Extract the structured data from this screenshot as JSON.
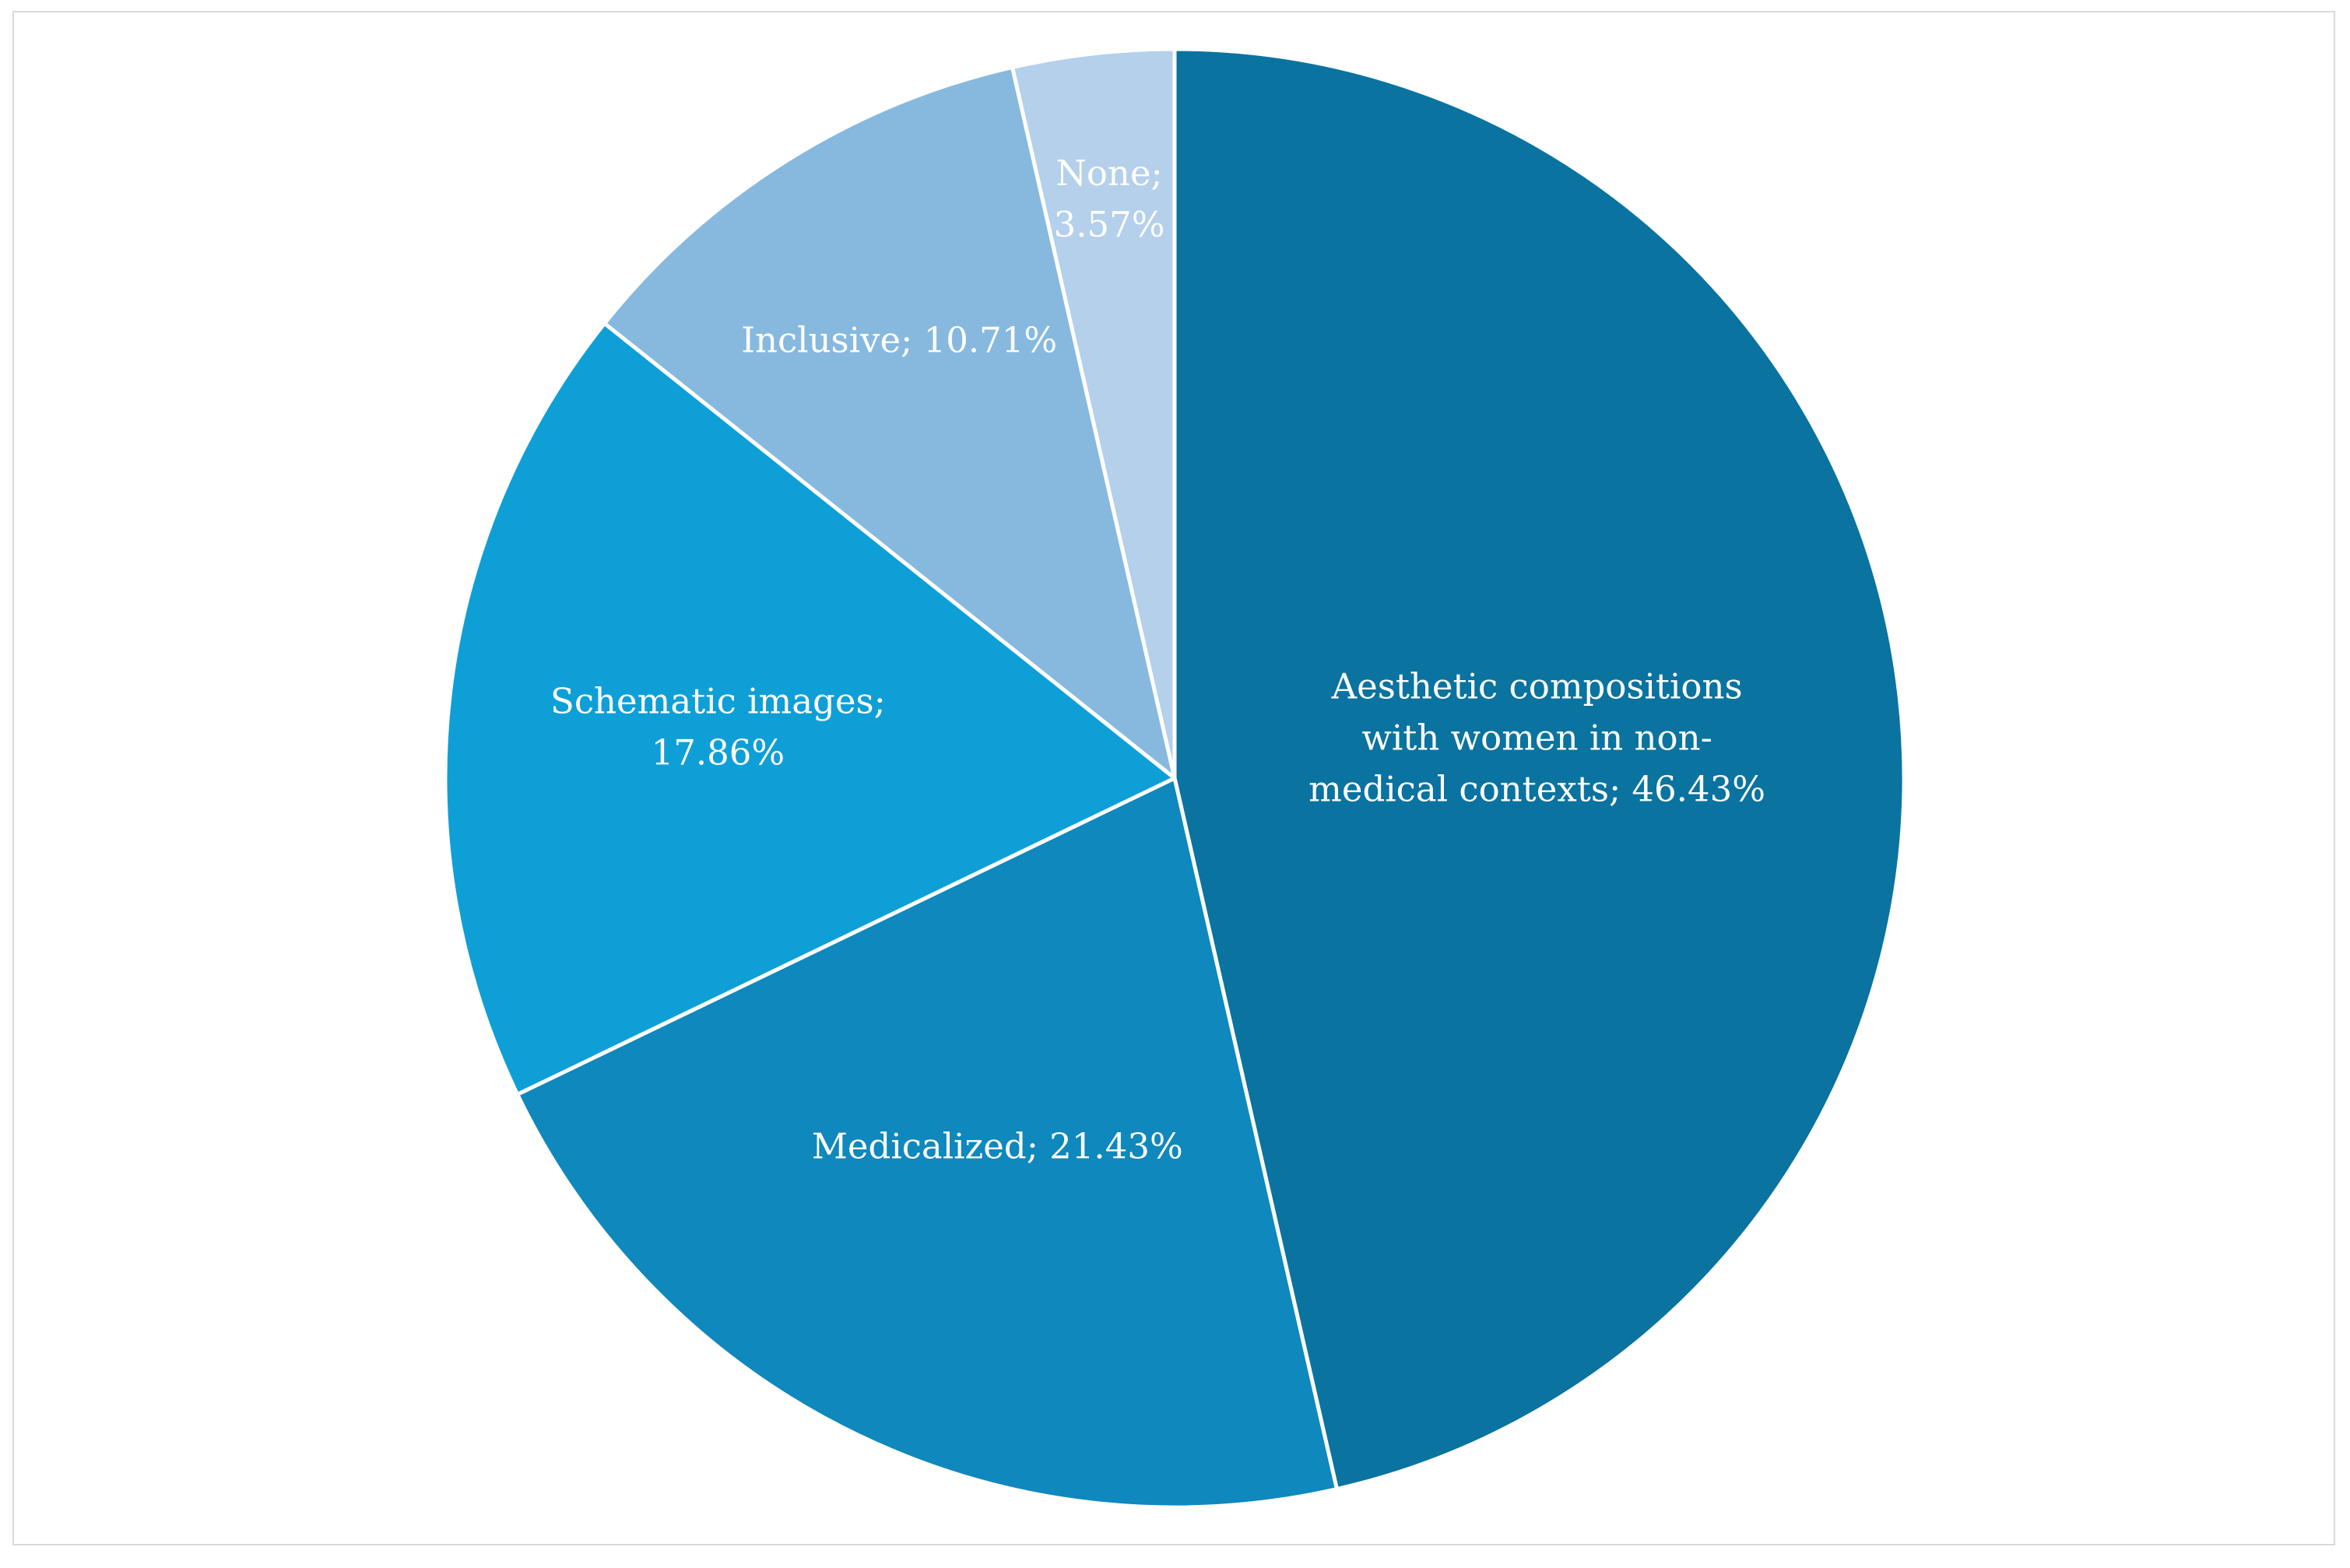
{
  "chart_data": {
    "type": "pie",
    "start": "12 o'clock, clockwise",
    "slices": [
      {
        "name": "Aesthetic compositions with women in non-medical contexts",
        "value": 46.43,
        "color": "#0a73a0",
        "label_lines": [
          "Aesthetic compositions",
          "with women in non-",
          "medical contexts; 46.43%"
        ]
      },
      {
        "name": "Medicalized",
        "value": 21.43,
        "color": "#0e88bd",
        "label_lines": [
          "Medicalized; 21.43%"
        ]
      },
      {
        "name": "Schematic images",
        "value": 17.86,
        "color": "#0f9fd7",
        "label_lines": [
          "Schematic images;",
          "17.86%"
        ]
      },
      {
        "name": "Inclusive",
        "value": 10.71,
        "color": "#87b9df",
        "label_lines": [
          "Inclusive; 10.71%"
        ]
      },
      {
        "name": "None",
        "value": 3.57,
        "color": "#b4d0ea",
        "label_lines": [
          "None;",
          "3.57%"
        ]
      }
    ]
  }
}
